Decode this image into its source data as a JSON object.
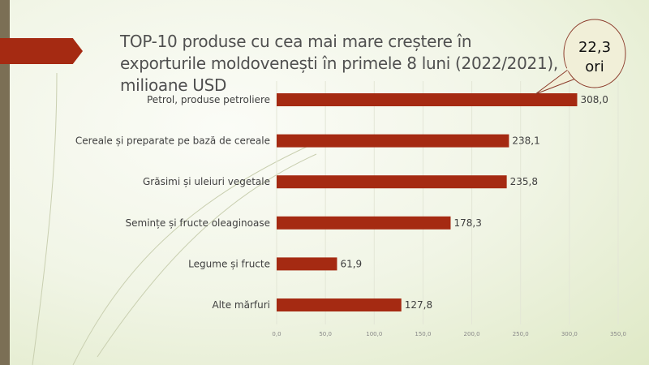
{
  "chart_data": {
    "type": "bar",
    "orientation": "horizontal",
    "title": "TOP-10 produse cu cea mai mare creștere în exporturile moldovenești în primele 8 luni (2022/2021), milioane USD",
    "categories": [
      "Petrol, produse petroliere",
      "Cereale și preparate pe bază de cereale",
      "Grăsimi și uleiuri vegetale",
      "Semințe și fructe oleaginoase",
      "Legume și fructe",
      "Alte mărfuri"
    ],
    "values": [
      308.0,
      238.1,
      235.8,
      178.3,
      61.9,
      127.8
    ],
    "value_labels": [
      "308,0",
      "238,1",
      "235,8",
      "178,3",
      "61,9",
      "127,8"
    ],
    "xlim": [
      0,
      350
    ],
    "ticks": [
      "0,0",
      "50,0",
      "100,0",
      "150,0",
      "200,0",
      "250,0",
      "300,0",
      "350,0"
    ],
    "grid": true,
    "bar_color": "#a52a12",
    "callout": {
      "line1": "22,3",
      "line2": "ori"
    }
  }
}
